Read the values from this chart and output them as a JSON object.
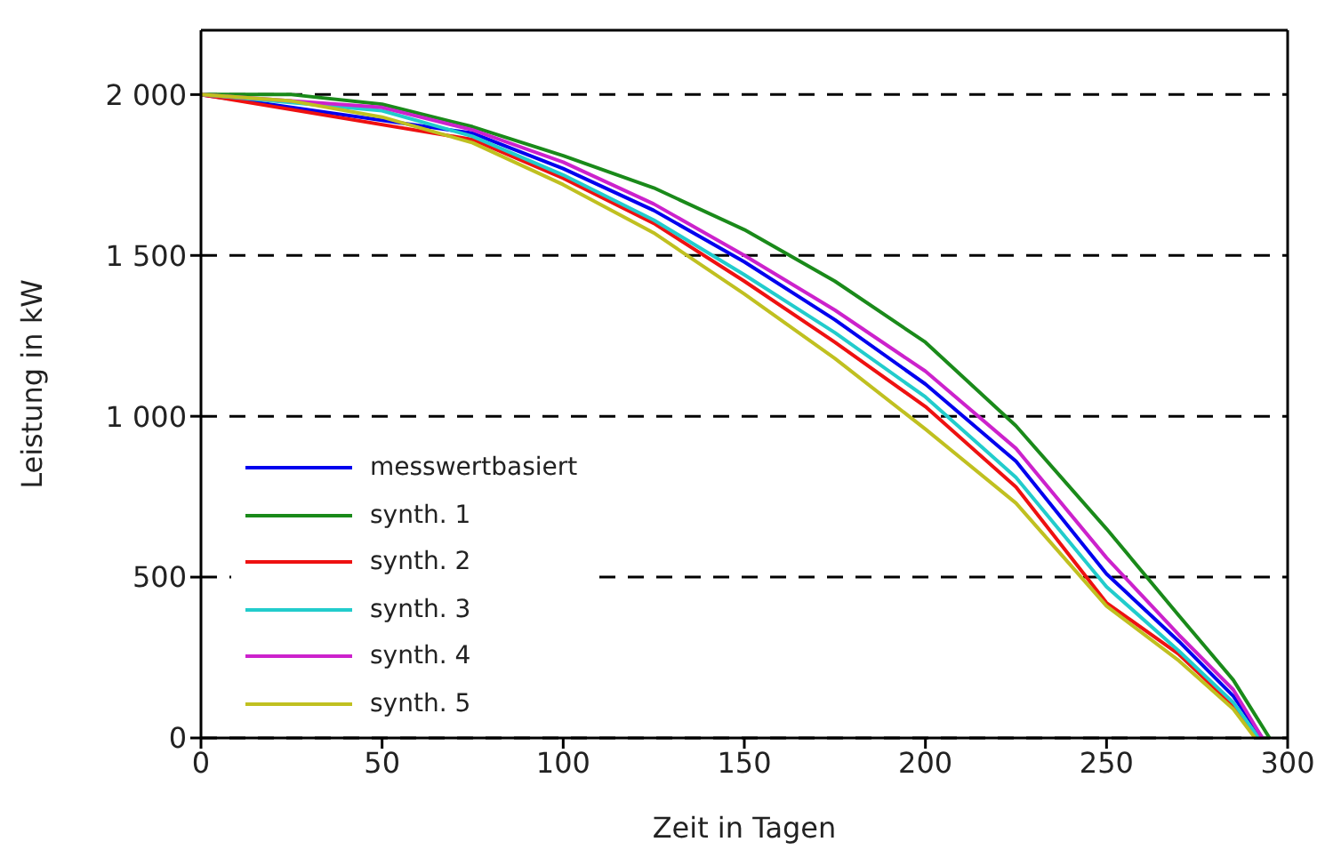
{
  "chart_data": {
    "type": "line",
    "xlabel": "Zeit in Tagen",
    "ylabel": "Leistung in kW",
    "xlim": [
      0,
      300
    ],
    "xticks": [
      0,
      50,
      100,
      150,
      200,
      250,
      300
    ],
    "ylim": [
      0,
      2200
    ],
    "yticks": [
      {
        "value": 0,
        "label": "0"
      },
      {
        "value": 500,
        "label": "500"
      },
      {
        "value": 1000,
        "label": "1 000"
      },
      {
        "value": 1500,
        "label": "1 500"
      },
      {
        "value": 2000,
        "label": "2 000"
      }
    ],
    "grid": "y",
    "legend": "bottom left",
    "marker": "none",
    "line_style": "solid",
    "series": [
      {
        "name": "messwertbasiert",
        "color": "#0000ee",
        "x": [
          0,
          75,
          100,
          125,
          150,
          175,
          200,
          225,
          250,
          270,
          285,
          293
        ],
        "values": [
          2000,
          1880,
          1770,
          1640,
          1480,
          1300,
          1100,
          860,
          510,
          300,
          130,
          0
        ]
      },
      {
        "name": "synth. 1",
        "color": "#1a8a1a",
        "x": [
          0,
          25,
          50,
          75,
          100,
          125,
          150,
          175,
          200,
          225,
          250,
          270,
          285,
          295
        ],
        "values": [
          2000,
          2000,
          1970,
          1900,
          1810,
          1710,
          1580,
          1420,
          1230,
          970,
          650,
          380,
          180,
          0
        ]
      },
      {
        "name": "synth. 2",
        "color": "#ee1111",
        "x": [
          0,
          75,
          100,
          125,
          150,
          175,
          200,
          225,
          250,
          270,
          285,
          292
        ],
        "values": [
          2000,
          1860,
          1740,
          1600,
          1420,
          1230,
          1030,
          780,
          420,
          260,
          100,
          0
        ]
      },
      {
        "name": "synth. 3",
        "color": "#22cccc",
        "x": [
          0,
          50,
          75,
          100,
          125,
          150,
          175,
          200,
          225,
          250,
          270,
          285,
          292
        ],
        "values": [
          2000,
          1950,
          1870,
          1750,
          1610,
          1440,
          1260,
          1060,
          810,
          470,
          270,
          110,
          0
        ]
      },
      {
        "name": "synth. 4",
        "color": "#cc22cc",
        "x": [
          0,
          50,
          75,
          100,
          125,
          150,
          175,
          200,
          225,
          250,
          270,
          285,
          293
        ],
        "values": [
          2000,
          1960,
          1890,
          1790,
          1660,
          1500,
          1330,
          1140,
          900,
          560,
          320,
          150,
          0
        ]
      },
      {
        "name": "synth. 5",
        "color": "#c0c020",
        "x": [
          0,
          25,
          50,
          75,
          100,
          125,
          150,
          175,
          200,
          225,
          250,
          270,
          285,
          291
        ],
        "values": [
          2000,
          1980,
          1930,
          1850,
          1720,
          1570,
          1380,
          1180,
          960,
          730,
          410,
          240,
          90,
          0
        ]
      }
    ]
  }
}
